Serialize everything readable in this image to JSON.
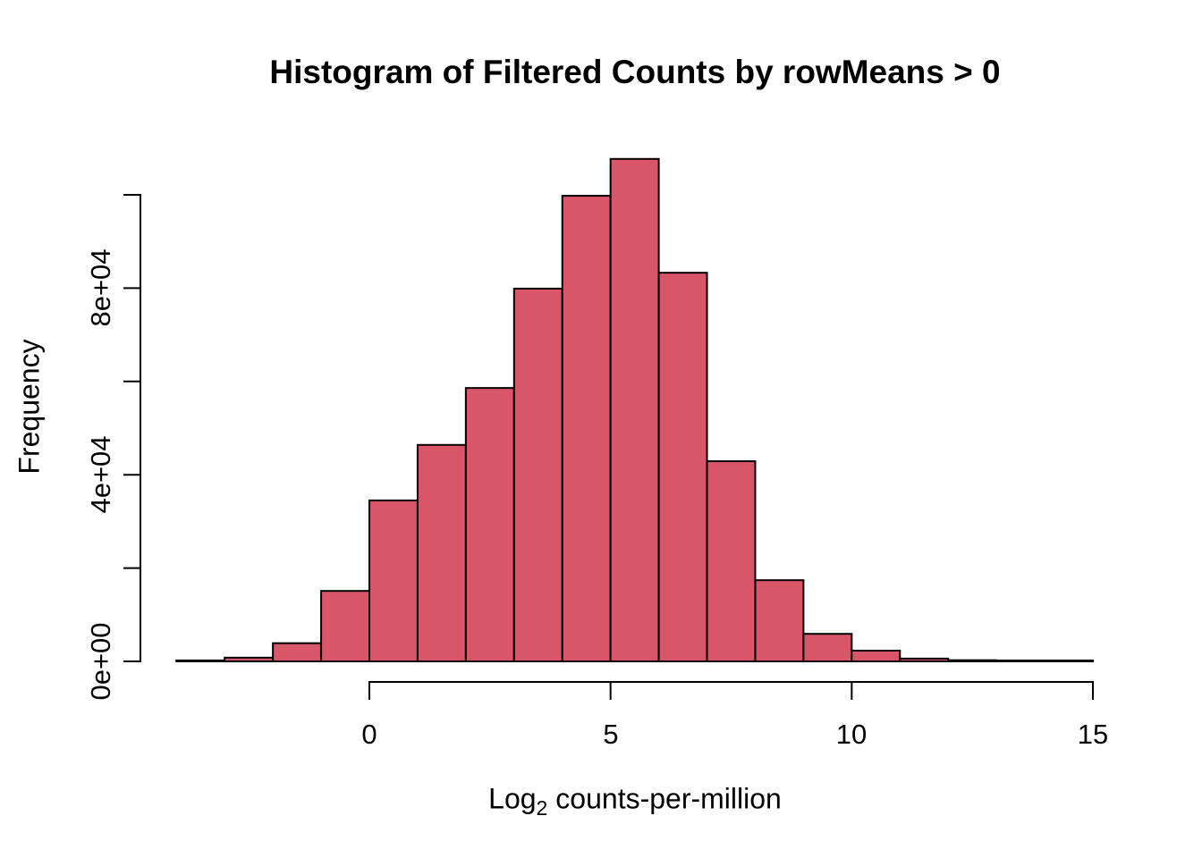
{
  "chart_data": {
    "type": "bar",
    "subtype": "histogram",
    "title": "Histogram of Filtered Counts by rowMeans > 0",
    "xlabel": "Log2 counts-per-million",
    "xlabel_parts": {
      "base": "Log",
      "sub": "2",
      "rest": "counts-per-million"
    },
    "ylabel": "Frequency",
    "bin_start": -4,
    "bin_width": 1,
    "bin_edges": [
      -4,
      -3,
      -2,
      -1,
      0,
      1,
      2,
      3,
      4,
      5,
      6,
      7,
      8,
      9,
      10,
      11,
      12,
      13,
      14,
      15
    ],
    "counts": [
      200,
      800,
      3900,
      15100,
      34500,
      46400,
      58600,
      79900,
      99800,
      107700,
      83300,
      42900,
      17400,
      5900,
      2300,
      600,
      250,
      50,
      20
    ],
    "x_ticks": [
      0,
      5,
      10,
      15
    ],
    "y_ticks": [
      0,
      20000,
      40000,
      60000,
      80000,
      100000
    ],
    "y_tick_labels": [
      "0e+00",
      "4e+04",
      "8e+04"
    ],
    "y_tick_label_values": [
      0,
      40000,
      80000
    ],
    "x_range": [
      -4,
      15
    ],
    "y_range": [
      0,
      100000
    ],
    "grid": false,
    "legend": "none",
    "bar_fill": "#D95568",
    "bar_stroke": "#000000",
    "axis_color": "#000000",
    "text_color": "#000000"
  }
}
